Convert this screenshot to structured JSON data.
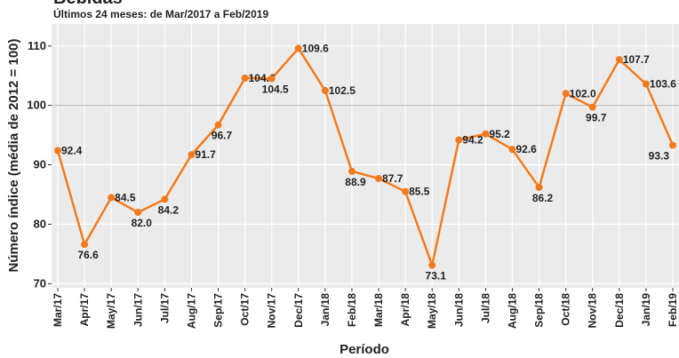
{
  "chart_data": {
    "type": "line",
    "title": "Bebidas",
    "subtitle": "Últimos 24 meses: de Mar/2017 a Feb/2019",
    "x_label": "Período",
    "y_label": "Número índice (média de 2012 = 100)",
    "categories": [
      "Mar/17",
      "Apr/17",
      "May/17",
      "Jun/17",
      "Jul/17",
      "Aug/17",
      "Sep/17",
      "Oct/17",
      "Nov/17",
      "Dec/17",
      "Jan/18",
      "Feb/18",
      "Mar/18",
      "Apr/18",
      "May/18",
      "Jun/18",
      "Jul/18",
      "Aug/18",
      "Sep/18",
      "Oct/18",
      "Nov/18",
      "Dec/18",
      "Jan/19",
      "Feb/19"
    ],
    "values": [
      92.4,
      76.6,
      84.5,
      82.0,
      84.2,
      91.7,
      96.7,
      104.6,
      104.5,
      109.6,
      102.5,
      88.9,
      87.7,
      85.5,
      73.1,
      94.2,
      95.2,
      92.6,
      86.2,
      102.0,
      99.7,
      107.7,
      103.6,
      93.3
    ],
    "value_labels": [
      "92.4",
      "76.6",
      "84.5",
      "82.0",
      "84.2",
      "91.7",
      "96.7",
      "104.6",
      "104.5",
      "109.6",
      "102.5",
      "88.9",
      "87.7",
      "85.5",
      "73.1",
      "94.2",
      "95.2",
      "92.6",
      "86.2",
      "102.0",
      "99.7",
      "107.7",
      "103.6",
      "93.3"
    ],
    "color": "#f37b1d",
    "reference_line": 100,
    "ylim": [
      69.3,
      113.7
    ],
    "yticks": [
      70,
      80,
      90,
      100,
      110
    ],
    "grid": true
  }
}
